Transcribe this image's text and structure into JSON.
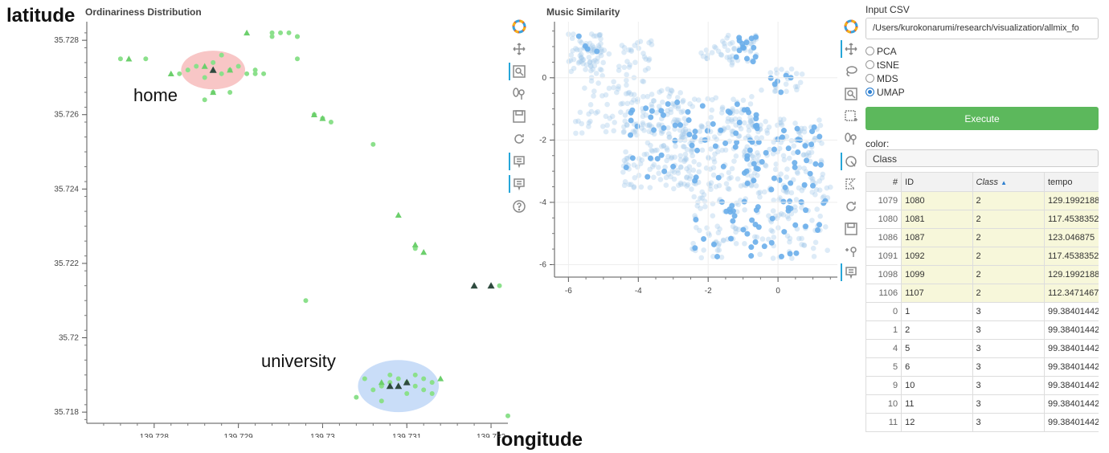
{
  "annotations": {
    "latitude": "latitude",
    "longitude": "longitude",
    "home": "home",
    "university": "university"
  },
  "chart_data": [
    {
      "type": "scatter",
      "title": "Ordinariness Distribution",
      "xlabel": "",
      "ylabel": "",
      "xlim": [
        139.7272,
        139.7322
      ],
      "ylim": [
        35.7177,
        35.7285
      ],
      "xticks": [
        "139.728",
        "139.729",
        "139.73",
        "139.731",
        "139.732"
      ],
      "yticks": [
        "35.718",
        "35.72",
        "35.722",
        "35.724",
        "35.726",
        "35.728"
      ],
      "xtick_values": [
        139.728,
        139.729,
        139.73,
        139.731,
        139.732
      ],
      "ytick_values": [
        35.718,
        35.72,
        35.722,
        35.724,
        35.726,
        35.728
      ],
      "colors": {
        "circle": "#8be08b",
        "triangle": "#6ccf6c",
        "dark": "#2e4a3e"
      },
      "regions": [
        {
          "label": "home",
          "cx": 139.7287,
          "cy": 35.7272,
          "rx": 0.00038,
          "ry": 0.00052,
          "color": "#f08080"
        },
        {
          "label": "university",
          "cx": 139.7309,
          "cy": 35.7187,
          "rx": 0.00048,
          "ry": 0.0007,
          "color": "#87b4f0"
        }
      ],
      "circles": [
        [
          139.7276,
          35.7275
        ],
        [
          139.7279,
          35.7275
        ],
        [
          139.7285,
          35.7273
        ],
        [
          139.7287,
          35.7274
        ],
        [
          139.7288,
          35.7271
        ],
        [
          139.7289,
          35.7272
        ],
        [
          139.7286,
          35.727
        ],
        [
          139.7284,
          35.7272
        ],
        [
          139.729,
          35.7273
        ],
        [
          139.7291,
          35.7271
        ],
        [
          139.7283,
          35.7271
        ],
        [
          139.7292,
          35.7272
        ],
        [
          139.7288,
          35.7276
        ],
        [
          139.7287,
          35.7266
        ],
        [
          139.7289,
          35.7266
        ],
        [
          139.7286,
          35.7264
        ],
        [
          139.7294,
          35.7281
        ],
        [
          139.7294,
          35.7282
        ],
        [
          139.7295,
          35.7282
        ],
        [
          139.7296,
          35.7282
        ],
        [
          139.7297,
          35.7281
        ],
        [
          139.7297,
          35.7275
        ],
        [
          139.7293,
          35.7271
        ],
        [
          139.73,
          35.7259
        ],
        [
          139.7299,
          35.726
        ],
        [
          139.7301,
          35.7258
        ],
        [
          139.7297,
          35.7281
        ],
        [
          139.7306,
          35.7252
        ],
        [
          139.7311,
          35.7224
        ],
        [
          139.7292,
          35.7271
        ],
        [
          139.7298,
          35.721
        ],
        [
          139.7321,
          35.7214
        ],
        [
          139.7322,
          35.7179
        ],
        [
          139.7305,
          35.7189
        ],
        [
          139.7307,
          35.7187
        ],
        [
          139.7308,
          35.7188
        ],
        [
          139.7309,
          35.7189
        ],
        [
          139.731,
          35.7188
        ],
        [
          139.7311,
          35.7187
        ],
        [
          139.7312,
          35.7186
        ],
        [
          139.7313,
          35.7188
        ],
        [
          139.7306,
          35.7186
        ],
        [
          139.7307,
          35.7183
        ],
        [
          139.731,
          35.7185
        ],
        [
          139.7313,
          35.7185
        ],
        [
          139.7304,
          35.7184
        ],
        [
          139.7308,
          35.719
        ],
        [
          139.7311,
          35.719
        ],
        [
          139.7312,
          35.7189
        ]
      ],
      "triangles": [
        [
          139.7277,
          35.7275
        ],
        [
          139.7282,
          35.7271
        ],
        [
          139.7286,
          35.7273
        ],
        [
          139.7289,
          35.7272
        ],
        [
          139.7287,
          35.7266
        ],
        [
          139.7291,
          35.7282
        ],
        [
          139.7299,
          35.726
        ],
        [
          139.73,
          35.7259
        ],
        [
          139.7309,
          35.7233
        ],
        [
          139.7311,
          35.7225
        ],
        [
          139.7312,
          35.7223
        ],
        [
          139.7307,
          35.7188
        ],
        [
          139.7314,
          35.7189
        ],
        [
          139.7309,
          35.7187
        ]
      ],
      "dark_triangles": [
        [
          139.7318,
          35.7214
        ],
        [
          139.732,
          35.7214
        ],
        [
          139.7308,
          35.7187
        ],
        [
          139.7309,
          35.7187
        ],
        [
          139.731,
          35.7188
        ],
        [
          139.7287,
          35.7272
        ]
      ]
    },
    {
      "type": "scatter",
      "title": "Music Similarity",
      "xlabel": "",
      "ylabel": "",
      "xlim": [
        -6.4,
        1.7
      ],
      "ylim": [
        -6.4,
        1.8
      ],
      "xticks": [
        "-6",
        "-4",
        "-2",
        "0"
      ],
      "yticks": [
        "0",
        "-2",
        "-4",
        "-6"
      ],
      "xtick_values": [
        -6,
        -4,
        -2,
        0
      ],
      "ytick_values": [
        0,
        -2,
        -4,
        -6
      ],
      "colors": {
        "faded": "#9ec6e8",
        "selected": "#6aaeea"
      },
      "regions_faded": [
        {
          "x": [
            -6.0,
            -5.0
          ],
          "y": [
            0.2,
            1.5
          ],
          "n": 55
        },
        {
          "x": [
            -5.8,
            -3.6
          ],
          "y": [
            -1.8,
            1.2
          ],
          "n": 110
        },
        {
          "x": [
            -4.5,
            -2.6
          ],
          "y": [
            -3.6,
            -0.3
          ],
          "n": 150
        },
        {
          "x": [
            -2.8,
            -0.6
          ],
          "y": [
            -3.5,
            -0.6
          ],
          "n": 170
        },
        {
          "x": [
            -0.8,
            1.3
          ],
          "y": [
            -3.7,
            -1.3
          ],
          "n": 110
        },
        {
          "x": [
            -2.5,
            1.5
          ],
          "y": [
            -5.8,
            -3.5
          ],
          "n": 140
        },
        {
          "x": [
            -1.6,
            -0.6
          ],
          "y": [
            0.4,
            1.4
          ],
          "n": 35
        },
        {
          "x": [
            -2.2,
            -1.6
          ],
          "y": [
            0.6,
            1.0
          ],
          "n": 12
        },
        {
          "x": [
            -0.6,
            0.8
          ],
          "y": [
            -0.6,
            0.3
          ],
          "n": 20
        }
      ],
      "regions_selected": [
        {
          "x": [
            -4.5,
            -2.6
          ],
          "y": [
            -3.5,
            -0.6
          ],
          "n": 25
        },
        {
          "x": [
            -2.6,
            -0.6
          ],
          "y": [
            -3.4,
            -0.8
          ],
          "n": 40
        },
        {
          "x": [
            -0.8,
            1.3
          ],
          "y": [
            -3.6,
            -1.5
          ],
          "n": 35
        },
        {
          "x": [
            -2.4,
            1.4
          ],
          "y": [
            -5.8,
            -3.8
          ],
          "n": 45
        },
        {
          "x": [
            -1.2,
            -0.6
          ],
          "y": [
            0.5,
            1.4
          ],
          "n": 14
        },
        {
          "x": [
            -5.8,
            -5.0
          ],
          "y": [
            0.8,
            1.4
          ],
          "n": 4
        },
        {
          "x": [
            -0.4,
            0.6
          ],
          "y": [
            -0.5,
            0.2
          ],
          "n": 6
        }
      ]
    }
  ],
  "panel": {
    "input_label": "Input CSV",
    "input_path": "/Users/kurokonarumi/research/visualization/allmix_fo",
    "methods": [
      "PCA",
      "tSNE",
      "MDS",
      "UMAP"
    ],
    "selected_method": "UMAP",
    "execute_label": "Execute",
    "color_label": "color:",
    "color_value": "Class"
  },
  "table": {
    "columns": [
      "#",
      "ID",
      "Class",
      "tempo"
    ],
    "sort_arrow": "▲",
    "rows": [
      {
        "idx": "1079",
        "id": "1080",
        "cls": "2",
        "tempo": "129.1992188",
        "selected": true
      },
      {
        "idx": "1080",
        "id": "1081",
        "cls": "2",
        "tempo": "117.4538352",
        "selected": true
      },
      {
        "idx": "1086",
        "id": "1087",
        "cls": "2",
        "tempo": "123.046875",
        "selected": true
      },
      {
        "idx": "1091",
        "id": "1092",
        "cls": "2",
        "tempo": "117.4538352",
        "selected": true
      },
      {
        "idx": "1098",
        "id": "1099",
        "cls": "2",
        "tempo": "129.1992188",
        "selected": true
      },
      {
        "idx": "1106",
        "id": "1107",
        "cls": "2",
        "tempo": "112.3471467",
        "selected": true
      },
      {
        "idx": "0",
        "id": "1",
        "cls": "3",
        "tempo": "99.38401442",
        "selected": false
      },
      {
        "idx": "1",
        "id": "2",
        "cls": "3",
        "tempo": "99.38401442",
        "selected": false
      },
      {
        "idx": "4",
        "id": "5",
        "cls": "3",
        "tempo": "99.38401442",
        "selected": false
      },
      {
        "idx": "5",
        "id": "6",
        "cls": "3",
        "tempo": "99.38401442",
        "selected": false
      },
      {
        "idx": "9",
        "id": "10",
        "cls": "3",
        "tempo": "99.38401442",
        "selected": false
      },
      {
        "idx": "10",
        "id": "11",
        "cls": "3",
        "tempo": "99.38401442",
        "selected": false
      },
      {
        "idx": "11",
        "id": "12",
        "cls": "3",
        "tempo": "99.38401442",
        "selected": false
      }
    ]
  }
}
